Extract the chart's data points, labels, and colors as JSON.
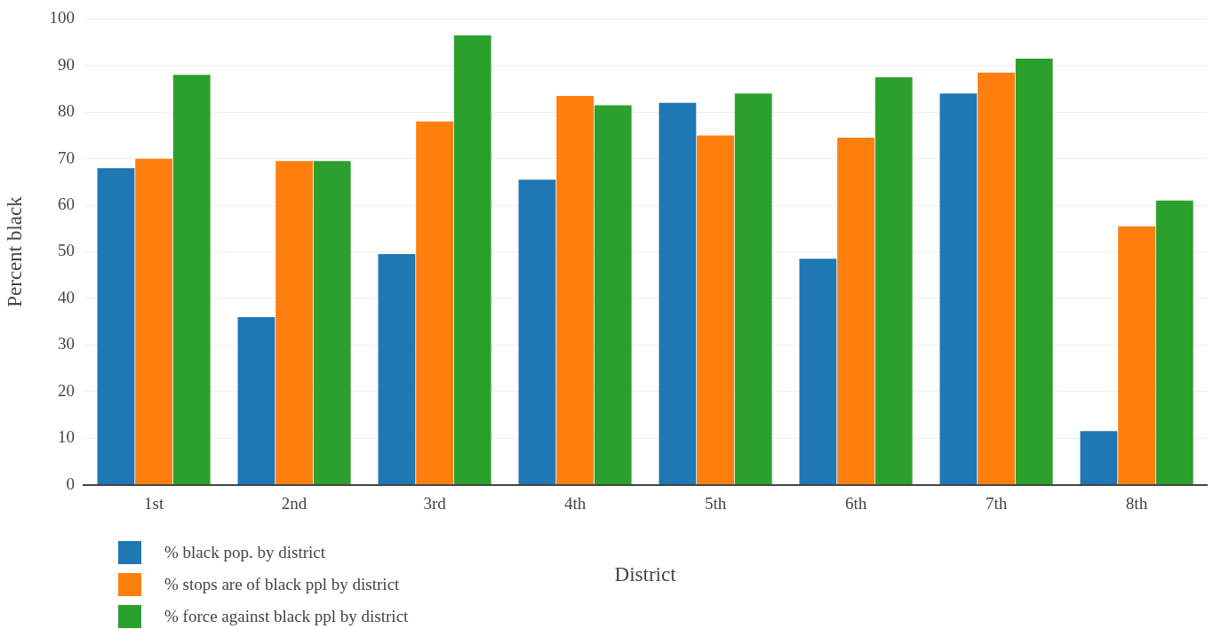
{
  "chart_data": {
    "type": "bar",
    "xlabel": "District",
    "ylabel": "Percent black",
    "categories": [
      "1st",
      "2nd",
      "3rd",
      "4th",
      "5th",
      "6th",
      "7th",
      "8th"
    ],
    "series": [
      {
        "name": "% black pop. by district",
        "color": "#1f77b4",
        "values": [
          68,
          36,
          49.5,
          65.5,
          82,
          48.5,
          84,
          11.5
        ]
      },
      {
        "name": "% stops are of black ppl by district",
        "color": "#ff7f0e",
        "values": [
          70,
          69.5,
          78,
          83.5,
          75,
          74.5,
          88.5,
          55.5
        ]
      },
      {
        "name": "% force against black ppl by district",
        "color": "#2ca02c",
        "values": [
          88,
          69.5,
          96.5,
          81.5,
          84,
          87.5,
          91.5,
          61
        ]
      }
    ],
    "ylim": [
      0,
      100
    ],
    "yticks": [
      0,
      10,
      20,
      30,
      40,
      50,
      60,
      70,
      80,
      90,
      100
    ],
    "grid": "y",
    "legend": "bottom left"
  }
}
